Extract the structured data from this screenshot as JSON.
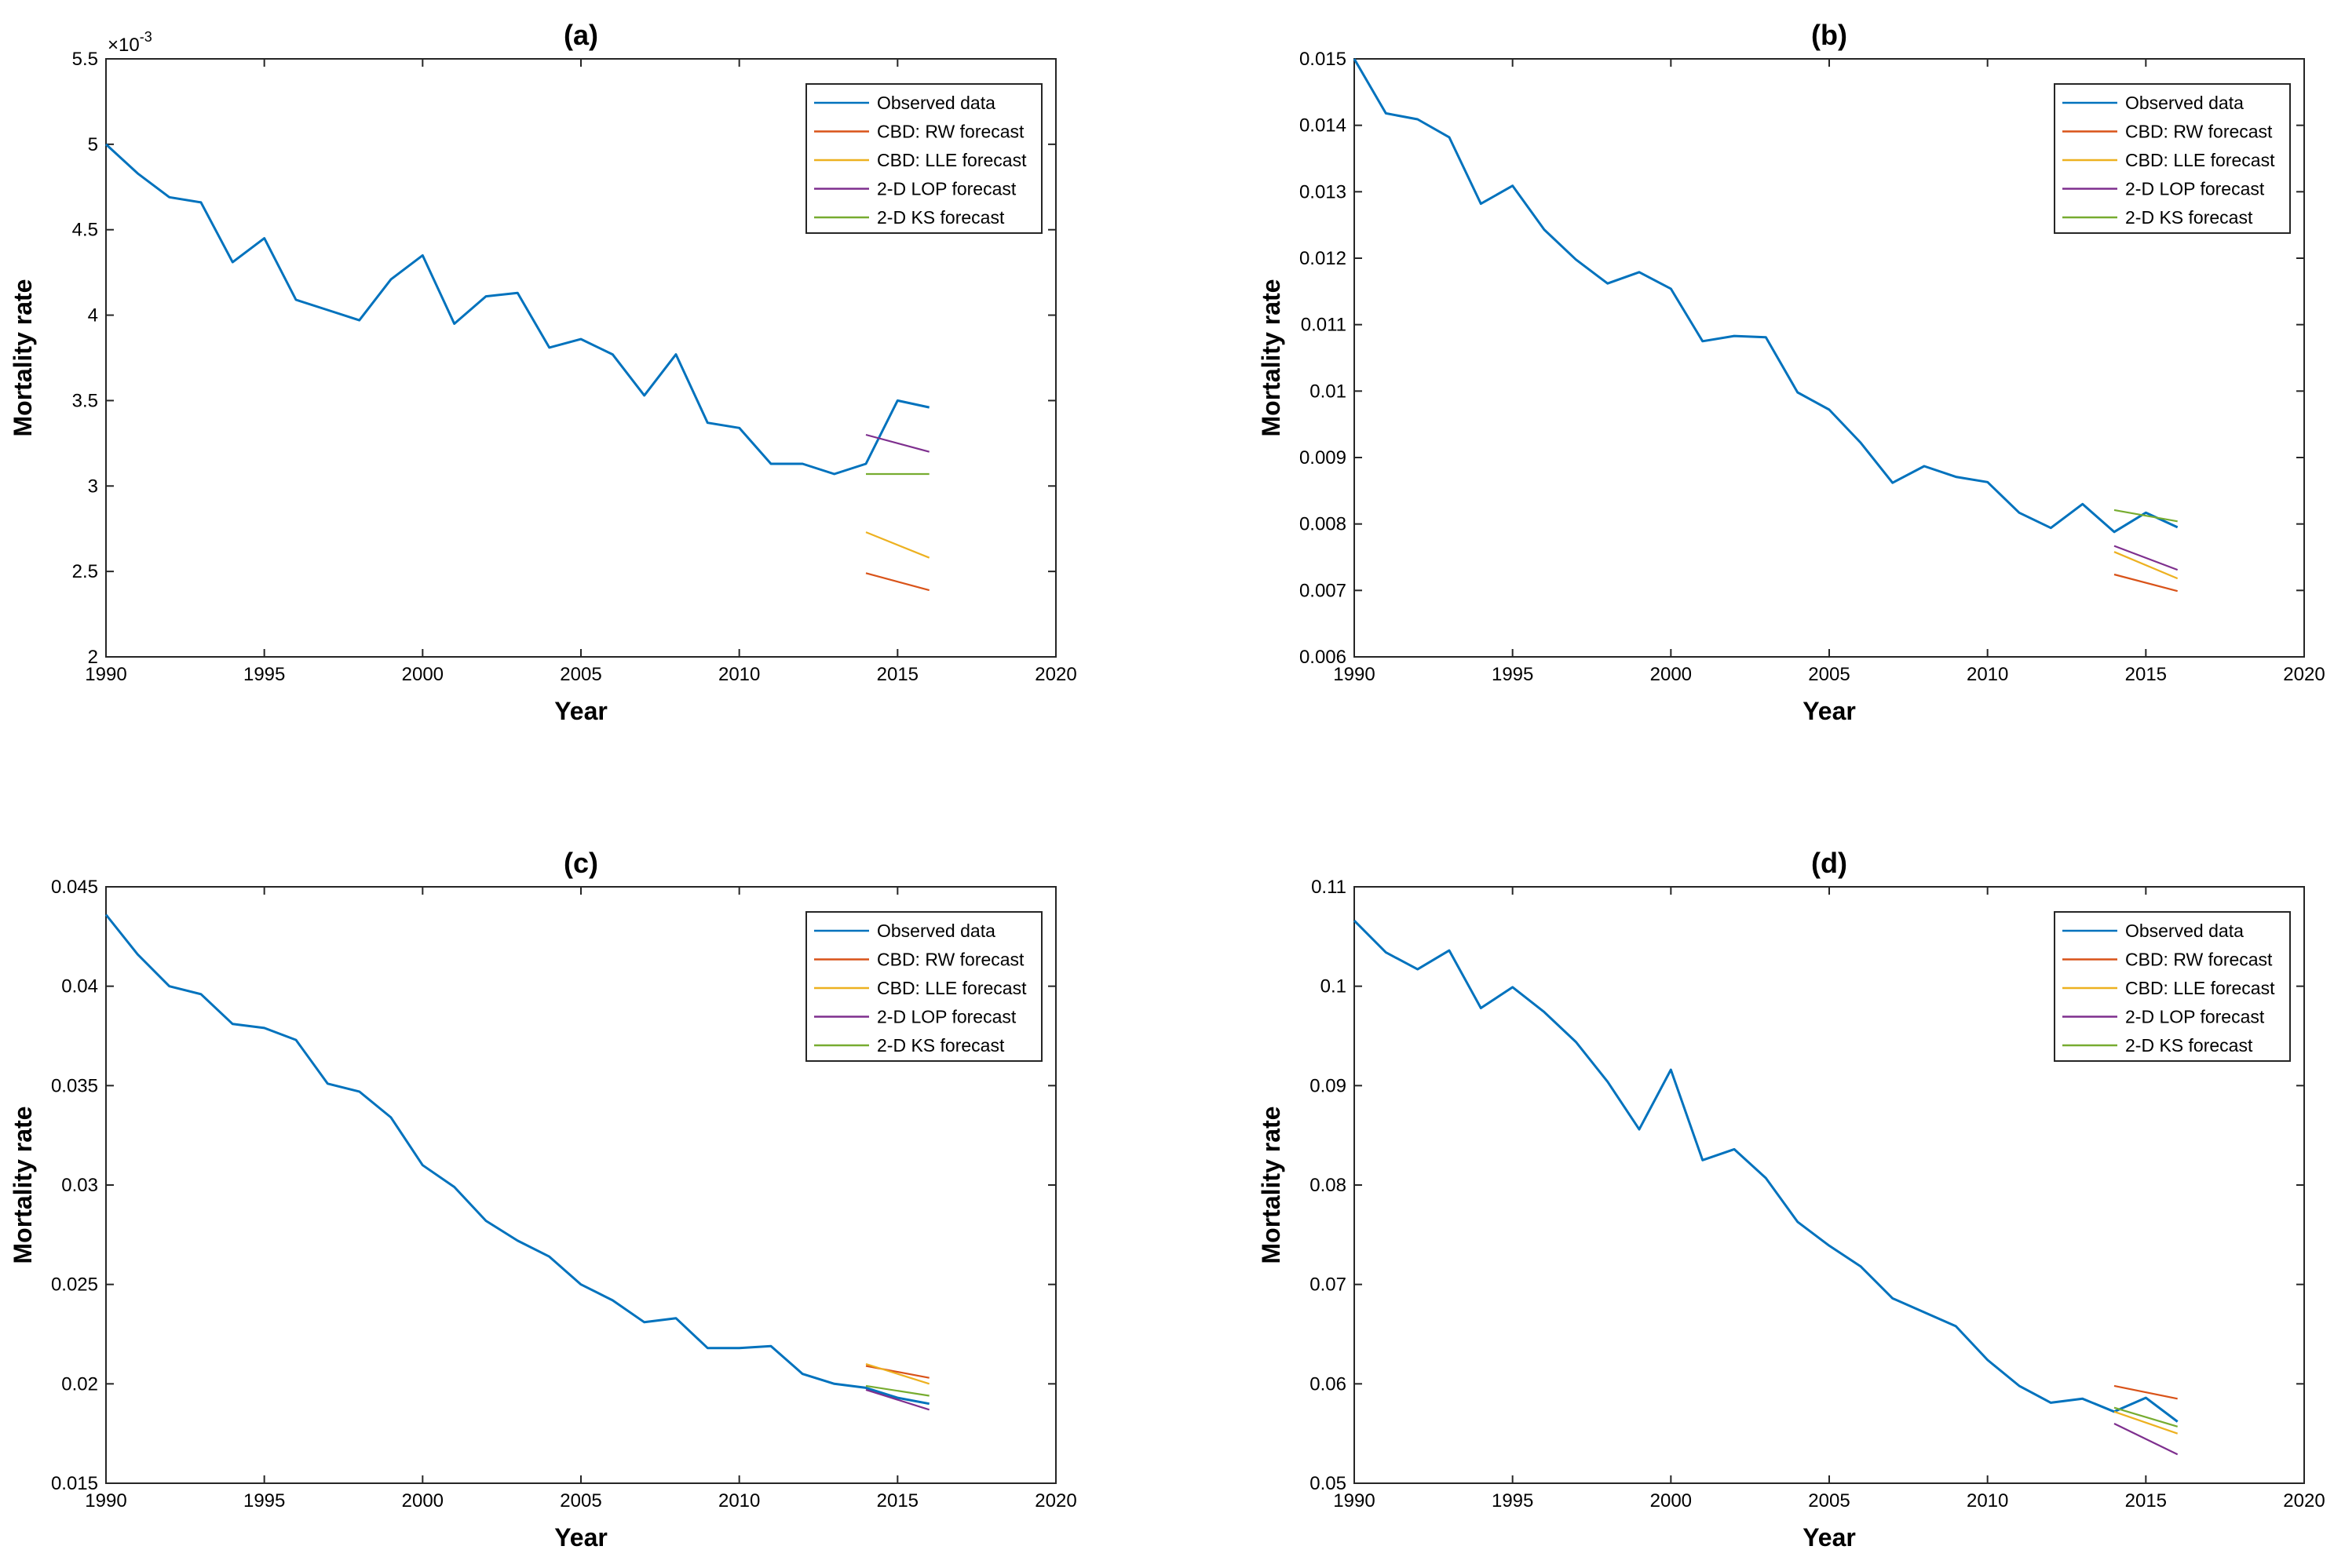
{
  "chart_data": [
    {
      "panel": "a",
      "type": "line",
      "title": "(a)",
      "xlabel": "Year",
      "ylabel": "Mortality rate",
      "xlim": [
        1990,
        2020
      ],
      "ylim": [
        2,
        5.5
      ],
      "y_scale_exponent": "×10",
      "y_scale_exponent_sup": "-3",
      "xticks": [
        "1990",
        "1995",
        "2000",
        "2005",
        "2010",
        "2015",
        "2020"
      ],
      "yticks": [
        "2",
        "2.5",
        "3",
        "3.5",
        "4",
        "4.5",
        "5",
        "5.5"
      ],
      "xtick_values": [
        1990,
        1995,
        2000,
        2005,
        2010,
        2015,
        2020
      ],
      "ytick_values": [
        2,
        2.5,
        3,
        3.5,
        4,
        4.5,
        5,
        5.5
      ],
      "legend_position": "top-right",
      "series": [
        {
          "name": "Observed data",
          "color": "#0072BD",
          "x": [
            1990,
            1991,
            1992,
            1993,
            1994,
            1995,
            1996,
            1997,
            1998,
            1999,
            2000,
            2001,
            2002,
            2003,
            2004,
            2005,
            2006,
            2007,
            2008,
            2009,
            2010,
            2011,
            2012,
            2013,
            2014,
            2015,
            2016
          ],
          "y": [
            5.0,
            4.83,
            4.69,
            4.66,
            4.31,
            4.45,
            4.09,
            4.03,
            3.97,
            4.21,
            4.35,
            3.95,
            4.11,
            4.13,
            3.81,
            3.86,
            3.77,
            3.53,
            3.77,
            3.37,
            3.34,
            3.13,
            3.13,
            3.07,
            3.13,
            3.5,
            3.46
          ]
        },
        {
          "name": "CBD: RW forecast",
          "color": "#D95319",
          "x": [
            2014,
            2016
          ],
          "y": [
            2.49,
            2.39
          ]
        },
        {
          "name": "CBD: LLE forecast",
          "color": "#EDB120",
          "x": [
            2014,
            2016
          ],
          "y": [
            2.73,
            2.58
          ]
        },
        {
          "name": "2-D LOP forecast",
          "color": "#7E2F8E",
          "x": [
            2014,
            2016
          ],
          "y": [
            3.3,
            3.2
          ]
        },
        {
          "name": "2-D KS forecast",
          "color": "#77AC30",
          "x": [
            2014,
            2016
          ],
          "y": [
            3.07,
            3.07
          ]
        }
      ]
    },
    {
      "panel": "b",
      "type": "line",
      "title": "(b)",
      "xlabel": "Year",
      "ylabel": "Mortality rate",
      "xlim": [
        1990,
        2020
      ],
      "ylim": [
        0.006,
        0.015
      ],
      "xticks": [
        "1990",
        "1995",
        "2000",
        "2005",
        "2010",
        "2015",
        "2020"
      ],
      "yticks": [
        "0.006",
        "0.007",
        "0.008",
        "0.009",
        "0.01",
        "0.011",
        "0.012",
        "0.013",
        "0.014",
        "0.015"
      ],
      "xtick_values": [
        1990,
        1995,
        2000,
        2005,
        2010,
        2015,
        2020
      ],
      "ytick_values": [
        0.006,
        0.007,
        0.008,
        0.009,
        0.01,
        0.011,
        0.012,
        0.013,
        0.014,
        0.015
      ],
      "legend_position": "top-right",
      "series": [
        {
          "name": "Observed data",
          "color": "#0072BD",
          "x": [
            1990,
            1991,
            1992,
            1993,
            1994,
            1995,
            1996,
            1997,
            1998,
            1999,
            2000,
            2001,
            2002,
            2003,
            2004,
            2005,
            2006,
            2007,
            2008,
            2009,
            2010,
            2011,
            2012,
            2013,
            2014,
            2015,
            2016
          ],
          "y": [
            0.015,
            0.01418,
            0.01409,
            0.01382,
            0.01282,
            0.01309,
            0.01243,
            0.01198,
            0.01162,
            0.01179,
            0.01154,
            0.01075,
            0.01083,
            0.01081,
            0.00998,
            0.00972,
            0.00922,
            0.00862,
            0.00887,
            0.00871,
            0.00863,
            0.00817,
            0.00794,
            0.0083,
            0.00788,
            0.00817,
            0.00795
          ]
        },
        {
          "name": "CBD: RW forecast",
          "color": "#D95319",
          "x": [
            2014,
            2016
          ],
          "y": [
            0.00724,
            0.00699
          ]
        },
        {
          "name": "CBD: LLE forecast",
          "color": "#EDB120",
          "x": [
            2014,
            2016
          ],
          "y": [
            0.00758,
            0.00718
          ]
        },
        {
          "name": "2-D LOP forecast",
          "color": "#7E2F8E",
          "x": [
            2014,
            2016
          ],
          "y": [
            0.00767,
            0.00731
          ]
        },
        {
          "name": "2-D KS forecast",
          "color": "#77AC30",
          "x": [
            2014,
            2016
          ],
          "y": [
            0.00821,
            0.00804
          ]
        }
      ]
    },
    {
      "panel": "c",
      "type": "line",
      "title": "(c)",
      "xlabel": "Year",
      "ylabel": "Mortality rate",
      "xlim": [
        1990,
        2020
      ],
      "ylim": [
        0.015,
        0.045
      ],
      "xticks": [
        "1990",
        "1995",
        "2000",
        "2005",
        "2010",
        "2015",
        "2020"
      ],
      "yticks": [
        "0.015",
        "0.02",
        "0.025",
        "0.03",
        "0.035",
        "0.04",
        "0.045"
      ],
      "xtick_values": [
        1990,
        1995,
        2000,
        2005,
        2010,
        2015,
        2020
      ],
      "ytick_values": [
        0.015,
        0.02,
        0.025,
        0.03,
        0.035,
        0.04,
        0.045
      ],
      "legend_position": "top-right",
      "series": [
        {
          "name": "Observed data",
          "color": "#0072BD",
          "x": [
            1990,
            1991,
            1992,
            1993,
            1994,
            1995,
            1996,
            1997,
            1998,
            1999,
            2000,
            2001,
            2002,
            2003,
            2004,
            2005,
            2006,
            2007,
            2008,
            2009,
            2010,
            2011,
            2012,
            2013,
            2014,
            2015,
            2016
          ],
          "y": [
            0.0436,
            0.0416,
            0.04,
            0.0396,
            0.0381,
            0.0379,
            0.0373,
            0.0351,
            0.0347,
            0.0334,
            0.031,
            0.0299,
            0.0282,
            0.0272,
            0.0264,
            0.025,
            0.0242,
            0.0231,
            0.0233,
            0.0218,
            0.0218,
            0.0219,
            0.0205,
            0.02,
            0.0198,
            0.0193,
            0.019
          ]
        },
        {
          "name": "CBD: RW forecast",
          "color": "#D95319",
          "x": [
            2014,
            2016
          ],
          "y": [
            0.0209,
            0.0203
          ]
        },
        {
          "name": "CBD: LLE forecast",
          "color": "#EDB120",
          "x": [
            2014,
            2016
          ],
          "y": [
            0.021,
            0.02
          ]
        },
        {
          "name": "2-D LOP forecast",
          "color": "#7E2F8E",
          "x": [
            2014,
            2016
          ],
          "y": [
            0.0197,
            0.0187
          ]
        },
        {
          "name": "2-D KS forecast",
          "color": "#77AC30",
          "x": [
            2014,
            2016
          ],
          "y": [
            0.0199,
            0.0194
          ]
        }
      ]
    },
    {
      "panel": "d",
      "type": "line",
      "title": "(d)",
      "xlabel": "Year",
      "ylabel": "Mortality rate",
      "xlim": [
        1990,
        2020
      ],
      "ylim": [
        0.05,
        0.11
      ],
      "xticks": [
        "1990",
        "1995",
        "2000",
        "2005",
        "2010",
        "2015",
        "2020"
      ],
      "yticks": [
        "0.05",
        "0.06",
        "0.07",
        "0.08",
        "0.09",
        "0.1",
        "0.11"
      ],
      "xtick_values": [
        1990,
        1995,
        2000,
        2005,
        2010,
        2015,
        2020
      ],
      "ytick_values": [
        0.05,
        0.06,
        0.07,
        0.08,
        0.09,
        0.1,
        0.11
      ],
      "legend_position": "top-right",
      "series": [
        {
          "name": "Observed data",
          "color": "#0072BD",
          "x": [
            1990,
            1991,
            1992,
            1993,
            1994,
            1995,
            1996,
            1997,
            1998,
            1999,
            2000,
            2001,
            2002,
            2003,
            2004,
            2005,
            2006,
            2007,
            2008,
            2009,
            2010,
            2011,
            2012,
            2013,
            2014,
            2015,
            2016
          ],
          "y": [
            0.1066,
            0.1034,
            0.1017,
            0.1036,
            0.0978,
            0.0999,
            0.0974,
            0.0944,
            0.0904,
            0.0856,
            0.0916,
            0.0825,
            0.0836,
            0.0807,
            0.0763,
            0.0739,
            0.0718,
            0.0686,
            0.0672,
            0.0658,
            0.0624,
            0.0598,
            0.0581,
            0.0585,
            0.0572,
            0.0586,
            0.0562
          ]
        },
        {
          "name": "CBD: RW forecast",
          "color": "#D95319",
          "x": [
            2014,
            2016
          ],
          "y": [
            0.0598,
            0.0585
          ]
        },
        {
          "name": "CBD: LLE forecast",
          "color": "#EDB120",
          "x": [
            2014,
            2016
          ],
          "y": [
            0.0572,
            0.055
          ]
        },
        {
          "name": "2-D LOP forecast",
          "color": "#7E2F8E",
          "x": [
            2014,
            2016
          ],
          "y": [
            0.056,
            0.0529
          ]
        },
        {
          "name": "2-D KS forecast",
          "color": "#77AC30",
          "x": [
            2014,
            2016
          ],
          "y": [
            0.0576,
            0.0557
          ]
        }
      ]
    }
  ]
}
